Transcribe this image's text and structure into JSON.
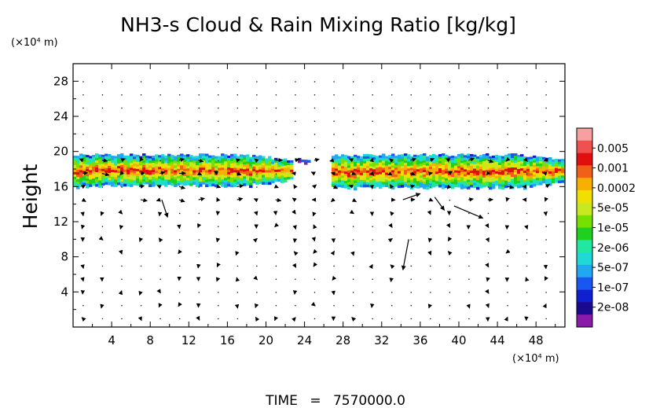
{
  "chart_data": {
    "type": "heatmap",
    "title": "NH3-s Cloud & Rain Mixing Ratio [kg/kg]",
    "ylabel": "Height",
    "y_unit": "(×10⁴ m)",
    "x_unit": "(×10⁴ m)",
    "xlim": [
      0,
      51
    ],
    "ylim": [
      0,
      30
    ],
    "x_ticks": [
      4,
      8,
      12,
      16,
      20,
      24,
      28,
      32,
      36,
      40,
      44,
      48
    ],
    "y_ticks": [
      4,
      8,
      12,
      16,
      20,
      24,
      28
    ],
    "x_tick_labels": [
      "4",
      "8",
      "12",
      "16",
      "20",
      "24",
      "28",
      "32",
      "36",
      "40",
      "44",
      "48"
    ],
    "y_tick_labels": [
      "4",
      "8",
      "12",
      "16",
      "20",
      "24",
      "28"
    ],
    "colorbar": {
      "labels": [
        "0.005",
        "0.001",
        "0.0002",
        "5e-05",
        "1e-05",
        "2e-06",
        "5e-07",
        "1e-07",
        "2e-08"
      ],
      "colors": [
        "#f6a0a0",
        "#f05050",
        "#e01010",
        "#f06018",
        "#f8b000",
        "#f0e000",
        "#c8e820",
        "#78e000",
        "#20d020",
        "#20e8a0",
        "#20d8d8",
        "#20a8f0",
        "#1858f0",
        "#1020d0",
        "#1a0a90",
        "#8a1aa8"
      ]
    },
    "cloud_layers": [
      {
        "x_range": [
          0,
          22.5
        ],
        "z_range": [
          16.0,
          19.8
        ],
        "max_level": 2
      },
      {
        "x_range": [
          23.3,
          24.7
        ],
        "z_range": [
          18.6,
          19.3
        ],
        "max_level": 12
      },
      {
        "x_range": [
          26.8,
          51
        ],
        "z_range": [
          15.8,
          19.8
        ],
        "max_level": 2
      }
    ],
    "time_label": "TIME",
    "time_value": "7570000.0"
  }
}
